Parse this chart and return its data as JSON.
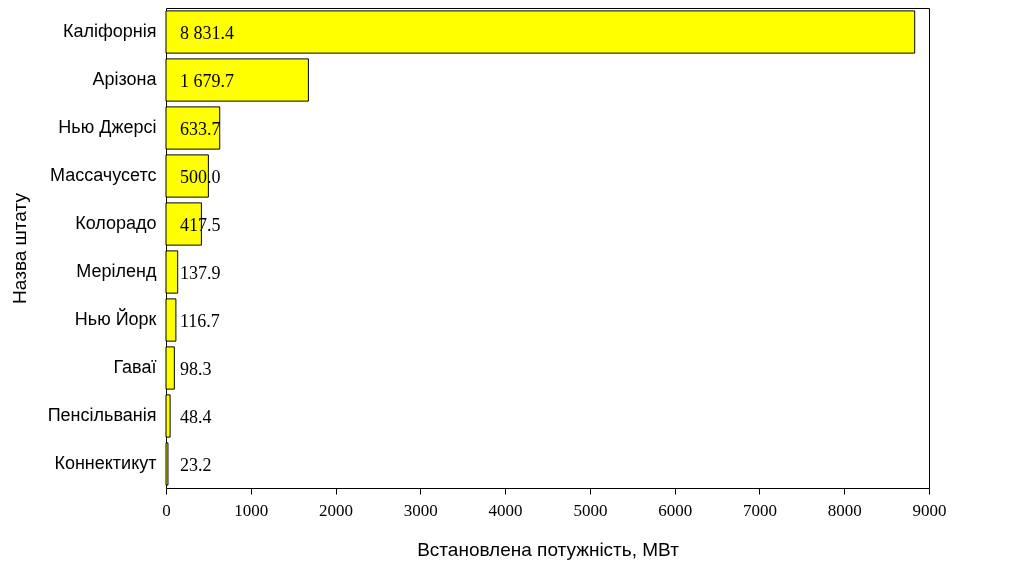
{
  "chart_data": {
    "type": "bar",
    "orientation": "horizontal",
    "xlabel": "Встановлена потужність, МВт",
    "ylabel": "Назва штату",
    "categories": [
      "Каліфорнія",
      "Арізона",
      "Нью Джерсі",
      "Массачусетс",
      "Колорадо",
      "Меріленд",
      "Нью Йорк",
      "Гаваї",
      "Пенсільванія",
      "Коннектикут"
    ],
    "values": [
      8831.4,
      1679.7,
      633.7,
      500.0,
      417.5,
      137.9,
      116.7,
      98.3,
      48.4,
      23.2
    ],
    "value_labels": [
      "8 831.4",
      "1 679.7",
      "633.7",
      "500.0",
      "417.5",
      "137.9",
      "116.7",
      "98.3",
      "48.4",
      "23.2"
    ],
    "color": "#ffff00",
    "xlim": [
      0,
      9000
    ],
    "xticks": [
      0,
      1000,
      2000,
      3000,
      4000,
      5000,
      6000,
      7000,
      8000,
      9000
    ],
    "grid": false
  }
}
